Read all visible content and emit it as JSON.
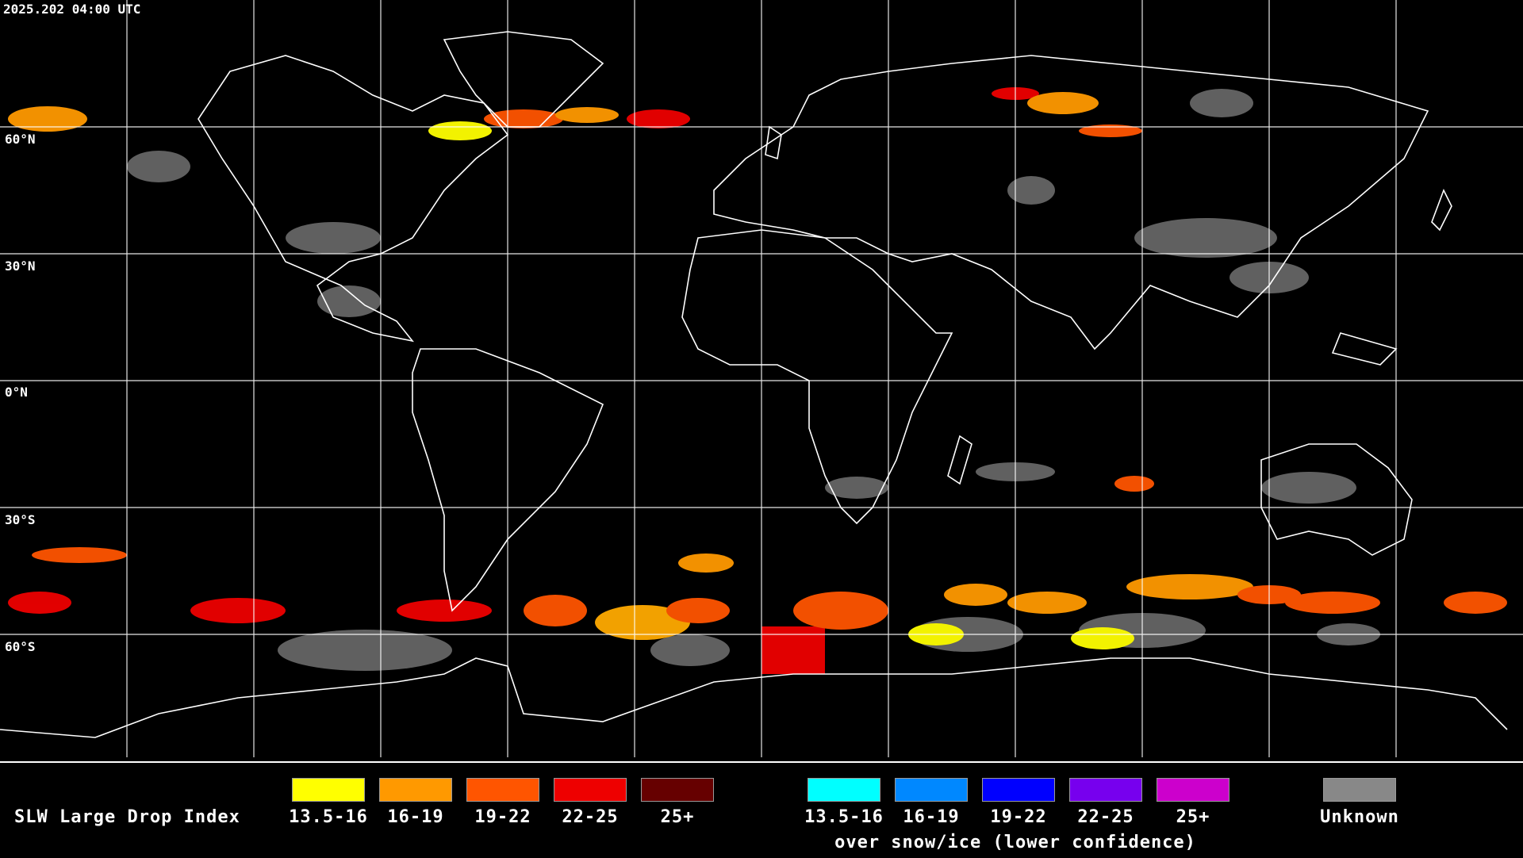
{
  "timestamp": "2025.202 04:00 UTC",
  "map": {
    "lat_labels": [
      "60°N",
      "30°N",
      "0°N",
      "30°S",
      "60°S"
    ],
    "grid": true,
    "land_outline_color": "#ffffff",
    "background_color": "#000000"
  },
  "legend": {
    "title": "SLW Large Drop Index",
    "primary_bins": [
      {
        "label": "13.5-16",
        "color": "#ffff00"
      },
      {
        "label": "16-19",
        "color": "#ff9900"
      },
      {
        "label": "19-22",
        "color": "#ff5500"
      },
      {
        "label": "22-25",
        "color": "#ee0000"
      },
      {
        "label": "25+",
        "color": "#660000"
      }
    ],
    "snow_bins": [
      {
        "label": "13.5-16",
        "color": "#00ffff"
      },
      {
        "label": "16-19",
        "color": "#0088ff"
      },
      {
        "label": "19-22",
        "color": "#0000ff"
      },
      {
        "label": "22-25",
        "color": "#7700ee"
      },
      {
        "label": "25+",
        "color": "#cc00cc"
      }
    ],
    "snow_note": "over snow/ice (lower confidence)",
    "unknown": {
      "label": "Unknown",
      "color": "#888888"
    }
  }
}
